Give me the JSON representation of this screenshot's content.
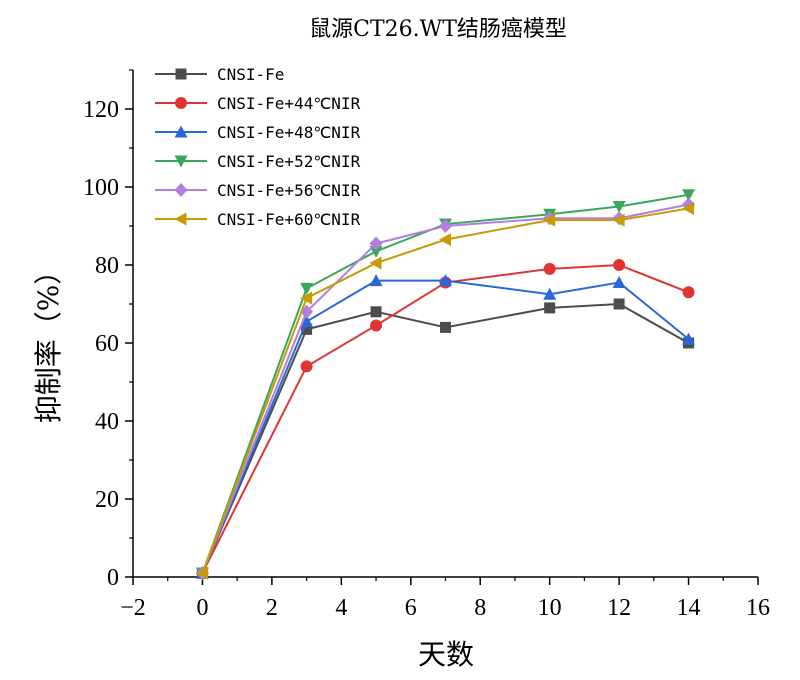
{
  "chart_data": {
    "type": "line",
    "title": "鼠源CT26.WT结肠癌模型",
    "xlabel": "天数",
    "ylabel": "抑制率（%）",
    "xlim": [
      -2,
      16
    ],
    "ylim": [
      0,
      130
    ],
    "xticks": [
      -2,
      0,
      2,
      4,
      6,
      8,
      10,
      12,
      14,
      16
    ],
    "xtick_labels": [
      "−2",
      "0",
      "2",
      "4",
      "6",
      "8",
      "10",
      "12",
      "14",
      "16"
    ],
    "yticks": [
      0,
      20,
      40,
      60,
      80,
      100,
      120
    ],
    "ytick_labels": [
      "0",
      "20",
      "40",
      "60",
      "80",
      "100",
      "120"
    ],
    "grid": false,
    "legend_position": "top-left",
    "x": [
      0,
      3,
      5,
      7,
      10,
      12,
      14
    ],
    "series": [
      {
        "name": "CNSI-Fe",
        "color": "#4d4d4d",
        "marker": "square",
        "values": [
          1,
          63.5,
          68,
          64,
          69,
          70,
          60
        ]
      },
      {
        "name": "CNSI-Fe+44℃NIR",
        "color": "#e03434",
        "marker": "circle",
        "values": [
          1,
          54,
          64.5,
          75.5,
          79,
          80,
          73
        ]
      },
      {
        "name": "CNSI-Fe+48℃NIR",
        "color": "#2868d8",
        "marker": "triangle-up",
        "values": [
          1,
          65.5,
          76,
          76,
          72.5,
          75.5,
          61
        ]
      },
      {
        "name": "CNSI-Fe+52℃NIR",
        "color": "#3aa65a",
        "marker": "triangle-down",
        "values": [
          1,
          74,
          83.5,
          90.5,
          93,
          95,
          98
        ]
      },
      {
        "name": "CNSI-Fe+56℃NIR",
        "color": "#b27fe0",
        "marker": "diamond",
        "values": [
          1,
          68,
          85.5,
          90,
          92,
          92,
          95.5
        ]
      },
      {
        "name": "CNSI-Fe+60℃NIR",
        "color": "#c79a06",
        "marker": "triangle-left",
        "values": [
          1,
          71.5,
          80.5,
          86.5,
          91.5,
          91.5,
          94.5
        ]
      }
    ]
  }
}
